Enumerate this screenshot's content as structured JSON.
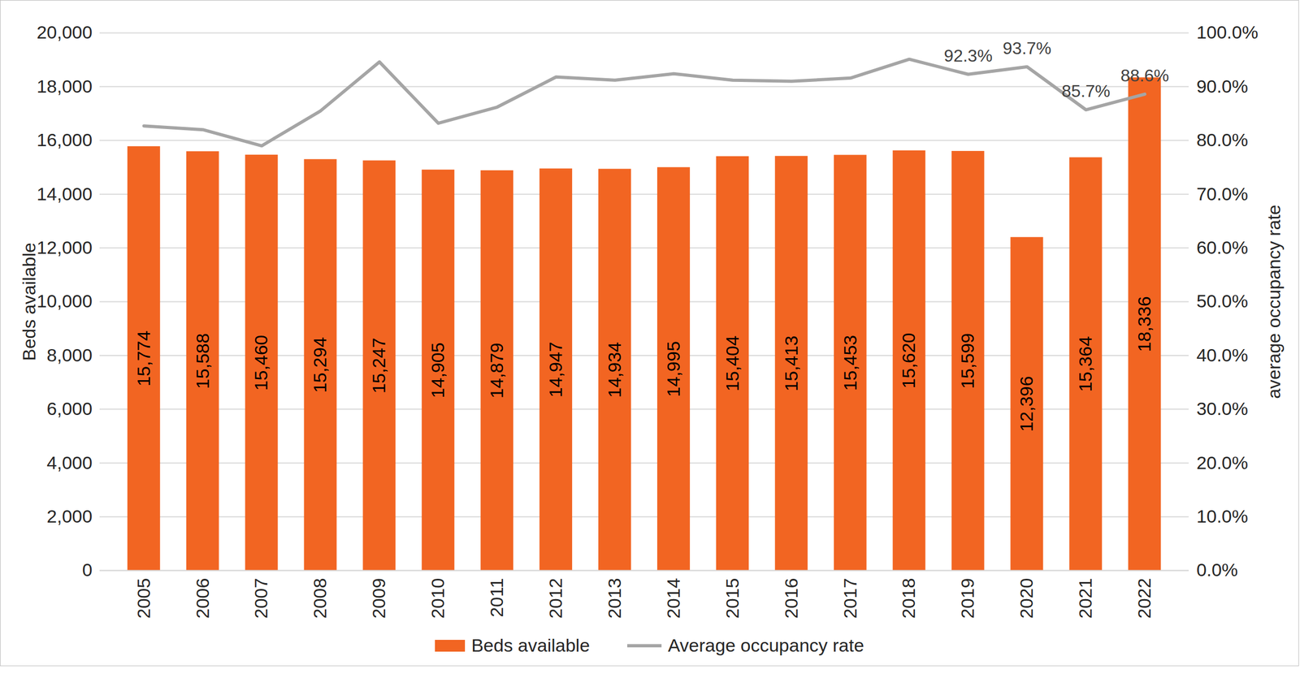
{
  "chart_data": {
    "type": "bar",
    "categories": [
      "2005",
      "2006",
      "2007",
      "2008",
      "2009",
      "2010",
      "2011",
      "2012",
      "2013",
      "2014",
      "2015",
      "2016",
      "2017",
      "2018",
      "2019",
      "2020",
      "2021",
      "2022"
    ],
    "series": [
      {
        "name": "Beds available",
        "type": "bar",
        "color": "#f26522",
        "data_labels": true,
        "values": [
          15774,
          15588,
          15460,
          15294,
          15247,
          14905,
          14879,
          14947,
          14934,
          14995,
          15404,
          15413,
          15453,
          15620,
          15599,
          12396,
          15364,
          18336
        ],
        "value_labels": [
          "15,774",
          "15,588",
          "15,460",
          "15,294",
          "15,247",
          "14,905",
          "14,879",
          "14,947",
          "14,934",
          "14,995",
          "15,404",
          "15,413",
          "15,453",
          "15,620",
          "15,599",
          "12,396",
          "15,364",
          "18,336"
        ]
      },
      {
        "name": "Average occupancy rate",
        "type": "line",
        "axis": "y2",
        "color": "#a5a5a5",
        "values": [
          82.7,
          82.0,
          79.0,
          85.5,
          94.6,
          83.2,
          86.2,
          91.8,
          91.2,
          92.4,
          91.2,
          91.0,
          91.6,
          95.1,
          92.3,
          93.7,
          85.7,
          88.6
        ],
        "value_labels": [
          null,
          null,
          null,
          null,
          null,
          null,
          null,
          null,
          null,
          null,
          null,
          null,
          null,
          null,
          "92.3%",
          "93.7%",
          "85.7%",
          "88.6%"
        ]
      }
    ],
    "ylabel": "Beds available",
    "y2label": "average occupancy rate",
    "ylim": [
      0,
      20000
    ],
    "yticks": [
      0,
      {
        "value": 2000,
        "label": "2,000"
      },
      {
        "value": 4000,
        "label": "4,000"
      },
      {
        "value": 6000,
        "label": "6,000"
      },
      {
        "value": 8000,
        "label": "8,000"
      },
      {
        "value": 10000,
        "label": "10,000"
      },
      {
        "value": 12000,
        "label": "12,000"
      },
      {
        "value": 14000,
        "label": "14,000"
      },
      {
        "value": 16000,
        "label": "16,000"
      },
      {
        "value": 18000,
        "label": "18,000"
      },
      {
        "value": 20000,
        "label": "20,000"
      }
    ],
    "y2lim": [
      0,
      100
    ],
    "y2ticks": [
      {
        "value": 0,
        "label": "0.0%"
      },
      {
        "value": 10,
        "label": "10.0%"
      },
      {
        "value": 20,
        "label": "20.0%"
      },
      {
        "value": 30,
        "label": "30.0%"
      },
      {
        "value": 40,
        "label": "40.0%"
      },
      {
        "value": 50,
        "label": "50.0%"
      },
      {
        "value": 60,
        "label": "60.0%"
      },
      {
        "value": 70,
        "label": "70.0%"
      },
      {
        "value": 80,
        "label": "80.0%"
      },
      {
        "value": 90,
        "label": "90.0%"
      },
      {
        "value": 100,
        "label": "100.0%"
      }
    ],
    "grid": true,
    "legend": "bottom"
  }
}
